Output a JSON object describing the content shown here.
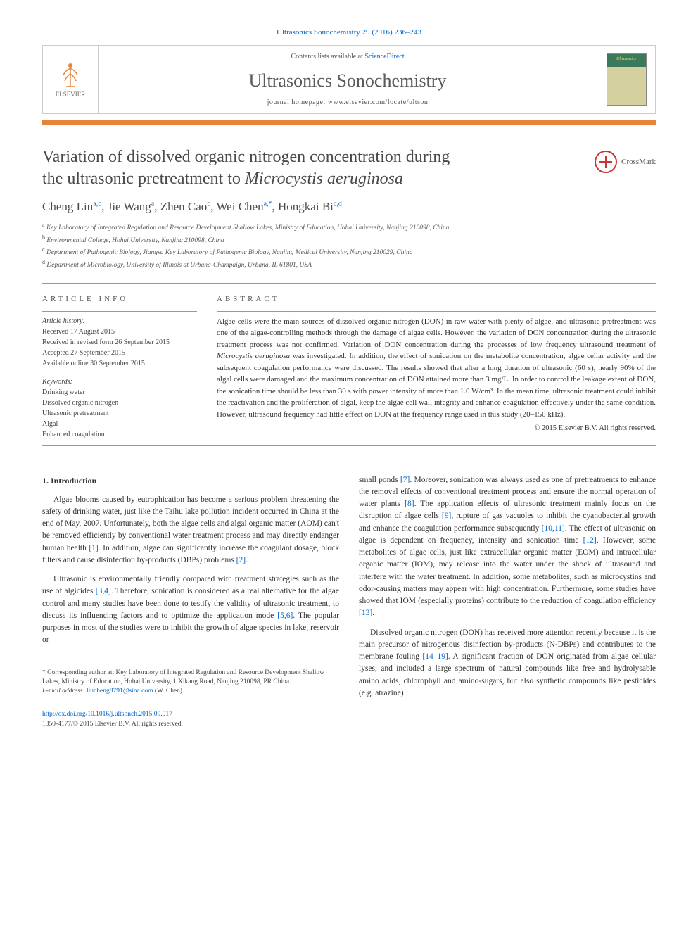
{
  "citation": "Ultrasonics Sonochemistry 29 (2016) 236–243",
  "header": {
    "contents_prefix": "Contents lists available at ",
    "contents_link": "ScienceDirect",
    "journal": "Ultrasonics Sonochemistry",
    "homepage_prefix": "journal homepage: ",
    "homepage": "www.elsevier.com/locate/ultson",
    "publisher": "ELSEVIER",
    "cover_title": "Ultrasonics"
  },
  "crossmark": "CrossMark",
  "title_line1": "Variation of dissolved organic nitrogen concentration during",
  "title_line2_pre": "the ultrasonic pretreatment to ",
  "title_species": "Microcystis aeruginosa",
  "authors_html": "Cheng Liu|a,b|, Jie Wang|a|, Zhen Cao|b|, Wei Chen|a,*|, Hongkai Bi|c,d|",
  "affiliations": [
    {
      "sup": "a",
      "text": "Key Laboratory of Integrated Regulation and Resource Development Shallow Lakes, Ministry of Education, Hohai University, Nanjing 210098, China"
    },
    {
      "sup": "b",
      "text": "Environmental College, Hohai University, Nanjing 210098, China"
    },
    {
      "sup": "c",
      "text": "Department of Pathogenic Biology, Jiangsu Key Laboratory of Pathogenic Biology, Nanjing Medical University, Nanjing 210029, China"
    },
    {
      "sup": "d",
      "text": "Department of Microbiology, University of Illinois at Urbana-Champaign, Urbana, IL 61801, USA"
    }
  ],
  "article_info_h": "ARTICLE INFO",
  "abstract_h": "ABSTRACT",
  "history": {
    "label": "Article history:",
    "lines": [
      "Received 17 August 2015",
      "Received in revised form 26 September 2015",
      "Accepted 27 September 2015",
      "Available online 30 September 2015"
    ]
  },
  "keywords": {
    "label": "Keywords:",
    "items": [
      "Drinking water",
      "Dissolved organic nitrogen",
      "Ultrasonic pretreatment",
      "Algal",
      "Enhanced coagulation"
    ]
  },
  "abstract_pre": "Algae cells were the main sources of dissolved organic nitrogen (DON) in raw water with plenty of algae, and ultrasonic pretreatment was one of the algae-controlling methods through the damage of algae cells. However, the variation of DON concentration during the ultrasonic treatment process was not confirmed. Variation of DON concentration during the processes of low frequency ultrasound treatment of ",
  "abstract_species": "Microcystis aeruginosa",
  "abstract_post": " was investigated. In addition, the effect of sonication on the metabolite concentration, algae cellar activity and the subsequent coagulation performance were discussed. The results showed that after a long duration of ultrasonic (60 s), nearly 90% of the algal cells were damaged and the maximum concentration of DON attained more than 3 mg/L. In order to control the leakage extent of DON, the sonication time should be less than 30 s with power intensity of more than 1.0 W/cm³. In the mean time, ultrasonic treatment could inhibit the reactivation and the proliferation of algal, keep the algae cell wall integrity and enhance coagulation effectively under the same condition. However, ultrasound frequency had little effect on DON at the frequency range used in this study (20–150 kHz).",
  "copyright": "© 2015 Elsevier B.V. All rights reserved.",
  "intro_h": "1. Introduction",
  "col1": {
    "p1_pre": "Algae blooms caused by eutrophication has become a serious problem threatening the safety of drinking water, just like the Taihu lake pollution incident occurred in China at the end of May, 2007. Unfortunately, both the algae cells and algal organic matter (AOM) can't be removed efficiently by conventional water treatment process and may directly endanger human health ",
    "p1_ref1": "[1]",
    "p1_mid": ". In addition, algae can significantly increase the coagulant dosage, block filters and cause disinfection by-products (DBPs) problems ",
    "p1_ref2": "[2]",
    "p1_end": ".",
    "p2_pre": "Ultrasonic is environmentally friendly compared with treatment strategies such as the use of algicides ",
    "p2_ref1": "[3,4]",
    "p2_mid": ". Therefore, sonication is considered as a real alternative for the algae control and many studies have been done to testify the validity of ultrasonic treatment, to discuss its influencing factors and to optimize the application mode ",
    "p2_ref2": "[5,6]",
    "p2_end": ". The popular purposes in most of the studies were to inhibit the growth of algae species in lake, reservoir or"
  },
  "col2": {
    "p1_pre": "small ponds ",
    "p1_ref1": "[7]",
    "p1_a": ". Moreover, sonication was always used as one of pretreatments to enhance the removal effects of conventional treatment process and ensure the normal operation of water plants ",
    "p1_ref2": "[8]",
    "p1_b": ". The application effects of ultrasonic treatment mainly focus on the disruption of algae cells ",
    "p1_ref3": "[9]",
    "p1_c": ", rupture of gas vacuoles to inhibit the cyanobacterial growth and enhance the coagulation performance subsequently ",
    "p1_ref4": "[10,11]",
    "p1_d": ". The effect of ultrasonic on algae is dependent on frequency, intensity and sonication time ",
    "p1_ref5": "[12]",
    "p1_e": ". However, some metabolites of algae cells, just like extracellular organic matter (EOM) and intracellular organic matter (IOM), may release into the water under the shock of ultrasound and interfere with the water treatment. In addition, some metabolites, such as microcystins and odor-causing matters may appear with high concentration. Furthermore, some studies have showed that IOM (especially proteins) contribute to the reduction of coagulation efficiency ",
    "p1_ref6": "[13]",
    "p1_end": ".",
    "p2_pre": "Dissolved organic nitrogen (DON) has received more attention recently because it is the main precursor of nitrogenous disinfection by-products (N-DBPs) and contributes to the membrane fouling ",
    "p2_ref1": "[14–19]",
    "p2_end": ". A significant fraction of DON originated from algae cellular lyses, and included a large spectrum of natural compounds like free and hydrolysable amino acids, chlorophyll and amino-sugars, but also synthetic compounds like pesticides (e.g. atrazine)"
  },
  "corr": {
    "star": "* Corresponding author at: Key Laboratory of Integrated Regulation and Resource Development Shallow Lakes, Ministry of Education, Hohai University, 1 Xikang Road, Nanjing 210098, PR China.",
    "email_label": "E-mail address: ",
    "email": "liucheng8791@sina.com",
    "email_suffix": " (W. Chen)."
  },
  "doi": {
    "url": "http://dx.doi.org/10.1016/j.ultsonch.2015.09.017",
    "issn": "1350-4177/© 2015 Elsevier B.V. All rights reserved."
  },
  "colors": {
    "link": "#0066cc",
    "orange_bar": "#e8833a",
    "text": "#333333",
    "muted": "#555555"
  }
}
